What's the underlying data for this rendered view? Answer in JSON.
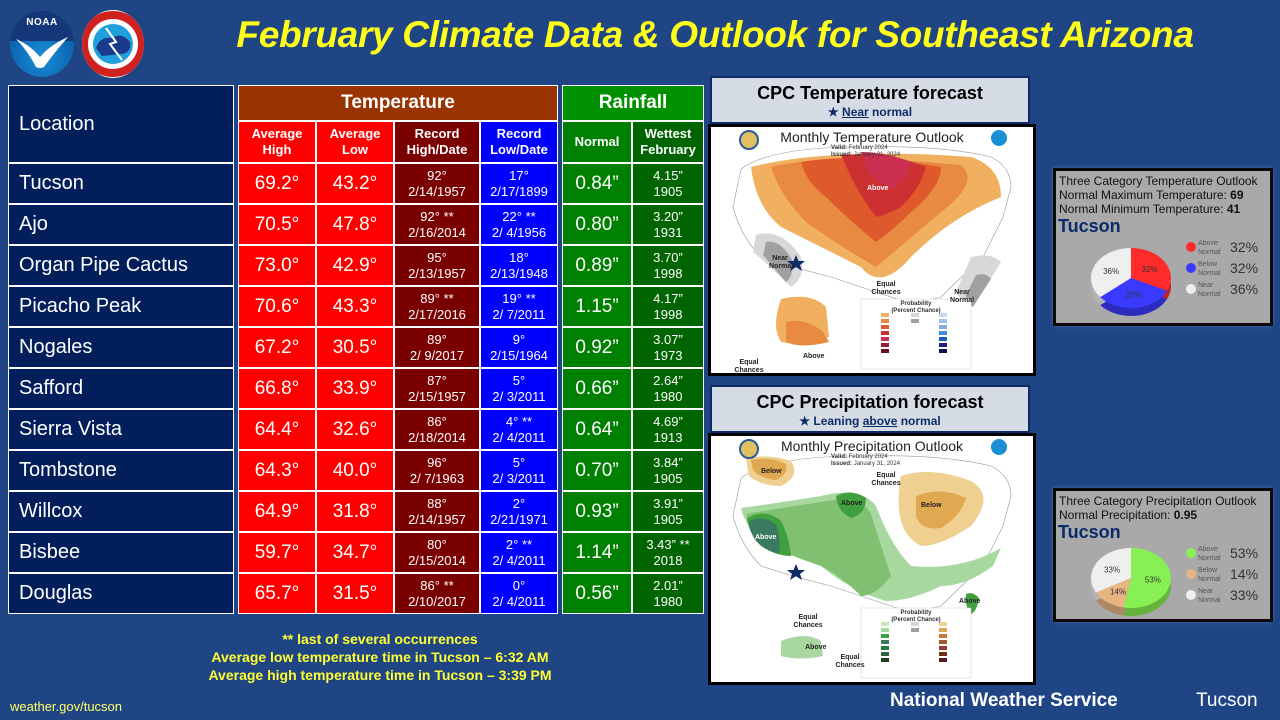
{
  "logos": {
    "noaa_text": "NOAA"
  },
  "title": "February Climate Data & Outlook for Southeast Arizona",
  "table": {
    "location_header": "Location",
    "temperature_header": "Temperature",
    "rainfall_header": "Rainfall",
    "sub_headers": {
      "avg_high": [
        "Average",
        "High"
      ],
      "avg_low": [
        "Average",
        "Low"
      ],
      "record_high": [
        "Record",
        "High/Date"
      ],
      "record_low": [
        "Record",
        "Low/Date"
      ],
      "normal": "Normal",
      "wettest": [
        "Wettest",
        "February"
      ]
    },
    "rows": [
      {
        "location": "Tucson",
        "avg_high": "69.2°",
        "avg_low": "43.2°",
        "rec_high": "92°",
        "rec_high_date": "2/14/1957",
        "rec_low": "17°",
        "rec_low_date": "2/17/1899",
        "normal": "0.84”",
        "wettest": "4.15”",
        "wettest_year": "1905"
      },
      {
        "location": "Ajo",
        "avg_high": "70.5°",
        "avg_low": "47.8°",
        "rec_high": "92° **",
        "rec_high_date": "2/16/2014",
        "rec_low": "22° **",
        "rec_low_date": "2/ 4/1956",
        "normal": "0.80”",
        "wettest": "3.20”",
        "wettest_year": "1931"
      },
      {
        "location": "Organ Pipe Cactus",
        "avg_high": "73.0°",
        "avg_low": "42.9°",
        "rec_high": "95°",
        "rec_high_date": "2/13/1957",
        "rec_low": "18°",
        "rec_low_date": "2/13/1948",
        "normal": "0.89”",
        "wettest": "3.70”",
        "wettest_year": "1998"
      },
      {
        "location": "Picacho Peak",
        "avg_high": "70.6°",
        "avg_low": "43.3°",
        "rec_high": "89° **",
        "rec_high_date": "2/17/2016",
        "rec_low": "19° **",
        "rec_low_date": "2/ 7/2011",
        "normal": "1.15”",
        "wettest": "4.17”",
        "wettest_year": "1998"
      },
      {
        "location": "Nogales",
        "avg_high": "67.2°",
        "avg_low": "30.5°",
        "rec_high": "89°",
        "rec_high_date": "2/ 9/2017",
        "rec_low": "9°",
        "rec_low_date": "2/15/1964",
        "normal": "0.92”",
        "wettest": "3.07”",
        "wettest_year": "1973"
      },
      {
        "location": "Safford",
        "avg_high": "66.8°",
        "avg_low": "33.9°",
        "rec_high": "87°",
        "rec_high_date": "2/15/1957",
        "rec_low": "5°",
        "rec_low_date": "2/ 3/2011",
        "normal": "0.66”",
        "wettest": "2.64”",
        "wettest_year": "1980"
      },
      {
        "location": "Sierra Vista",
        "avg_high": "64.4°",
        "avg_low": "32.6°",
        "rec_high": "86°",
        "rec_high_date": "2/18/2014",
        "rec_low": "4° **",
        "rec_low_date": "2/ 4/2011",
        "normal": "0.64”",
        "wettest": "4.69”",
        "wettest_year": "1913"
      },
      {
        "location": "Tombstone",
        "avg_high": "64.3°",
        "avg_low": "40.0°",
        "rec_high": "96°",
        "rec_high_date": "2/ 7/1963",
        "rec_low": "5°",
        "rec_low_date": "2/ 3/2011",
        "normal": "0.70”",
        "wettest": "3.84”",
        "wettest_year": "1905"
      },
      {
        "location": "Willcox",
        "avg_high": "64.9°",
        "avg_low": "31.8°",
        "rec_high": "88°",
        "rec_high_date": "2/14/1957",
        "rec_low": "2°",
        "rec_low_date": "2/21/1971",
        "normal": "0.93”",
        "wettest": "3.91”",
        "wettest_year": "1905"
      },
      {
        "location": "Bisbee",
        "avg_high": "59.7°",
        "avg_low": "34.7°",
        "rec_high": "80°",
        "rec_high_date": "2/15/2014",
        "rec_low": "2° **",
        "rec_low_date": "2/ 4/2011",
        "normal": "1.14”",
        "wettest": "3.43” **",
        "wettest_year": "2018"
      },
      {
        "location": "Douglas",
        "avg_high": "65.7°",
        "avg_low": "31.5°",
        "rec_high": "86° **",
        "rec_high_date": "2/10/2017",
        "rec_low": "0°",
        "rec_low_date": "2/ 4/2011",
        "normal": "0.56”",
        "wettest": "2.01”",
        "wettest_year": "1980"
      }
    ]
  },
  "notes": [
    "** last of several occurrences",
    "Average low temperature time in Tucson – 6:32 AM",
    "Average high temperature time in Tucson – 3:39 PM"
  ],
  "website": "weather.gov/tucson",
  "footer": {
    "agency": "National Weather Service",
    "office": "Tucson"
  },
  "temp_forecast": {
    "title": "CPC Temperature forecast",
    "sub_under": "Near",
    "sub_rest": " normal",
    "map": {
      "title": "Monthly Temperature Outlook",
      "valid_label": "Valid:",
      "valid": "February 2024",
      "issued_label": "Issued:",
      "issued": "January 31, 2024",
      "labels": [
        "Above",
        "Near Normal",
        "Equal Chances",
        "Near Normal",
        "Above",
        "Equal Chances"
      ],
      "legend_title": "Probability (Percent Chance)"
    }
  },
  "precip_forecast": {
    "title": "CPC Precipitation forecast",
    "sub_pre": "Leaning ",
    "sub_under": "above",
    "sub_rest": " normal",
    "map": {
      "title": "Monthly Precipitation Outlook",
      "valid_label": "Valid:",
      "valid": "February 2024",
      "issued_label": "Issued:",
      "issued": "January 31, 2024",
      "labels": [
        "Below",
        "Equal Chances",
        "Above",
        "Below",
        "Above",
        "Above",
        "Equal Chances",
        "Above",
        "Equal Chances"
      ],
      "legend_title": "Probability (Percent Chance)"
    }
  },
  "temp_outlook": {
    "title": "Three Category Temperature Outlook",
    "max_label": "Normal Maximum Temperature:",
    "max_value": "69",
    "min_label": "Normal Minimum Temperature:",
    "min_value": "41",
    "city": "Tucson",
    "slices": [
      {
        "name": "Above Normal",
        "label": "32%",
        "value": 32,
        "color": "#ff2a2a"
      },
      {
        "name": "Below Normal",
        "label": "32%",
        "value": 32,
        "color": "#3a3aff"
      },
      {
        "name": "Near Normal",
        "label": "36%",
        "value": 36,
        "color": "#efefef"
      }
    ]
  },
  "precip_outlook": {
    "title": "Three Category Precipitation Outlook",
    "normal_label": "Normal Precipitation:",
    "normal_value": "0.95",
    "city": "Tucson",
    "slices": [
      {
        "name": "Above Normal",
        "label": "53%",
        "value": 53,
        "color": "#88f055"
      },
      {
        "name": "Below Normal",
        "label": "14%",
        "value": 14,
        "color": "#e6b582"
      },
      {
        "name": "Near Normal",
        "label": "33%",
        "value": 33,
        "color": "#efefef"
      }
    ]
  }
}
